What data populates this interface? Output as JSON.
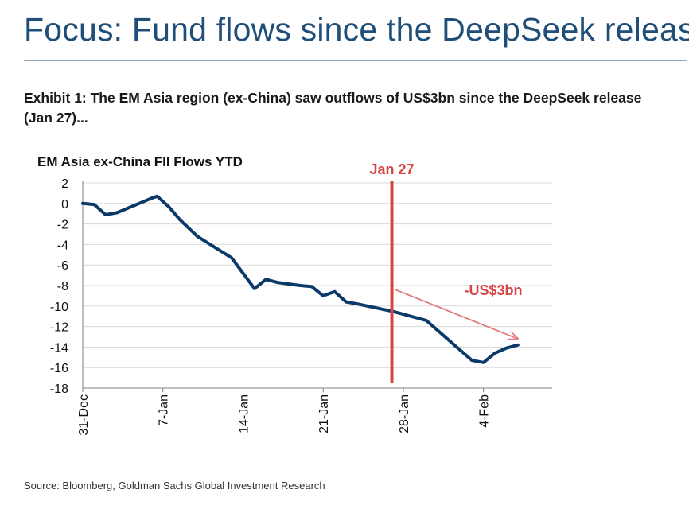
{
  "page": {
    "title": "Focus: Fund flows since the DeepSeek release",
    "exhibit": "Exhibit 1: The EM Asia region (ex-China) saw outflows of US$3bn since the DeepSeek release (Jan 27)...",
    "source": "Source: Bloomberg, Goldman Sachs Global Investment Research"
  },
  "colors": {
    "title": "#1f4e79",
    "line": "#0b3a68",
    "marker": "#d64545",
    "arrow": "#e07c7c",
    "grid": "#d9d9d9"
  },
  "chart_data": {
    "type": "line",
    "title": "EM Asia ex-China FII Flows YTD",
    "xlabel": "",
    "ylabel": "",
    "ylim": [
      -18,
      2
    ],
    "yticks": [
      2,
      0,
      -2,
      -4,
      -6,
      -8,
      -10,
      -12,
      -14,
      -16,
      -18
    ],
    "xlim": [
      0,
      41
    ],
    "xticks": [
      {
        "x": 0,
        "label": "31-Dec"
      },
      {
        "x": 7,
        "label": "7-Jan"
      },
      {
        "x": 14,
        "label": "14-Jan"
      },
      {
        "x": 21,
        "label": "21-Jan"
      },
      {
        "x": 28,
        "label": "28-Jan"
      },
      {
        "x": 35,
        "label": "4-Feb"
      }
    ],
    "grid": "horizontal",
    "series": [
      {
        "name": "EM Asia ex-China FII Flows YTD",
        "x": [
          0,
          1,
          2,
          3,
          6,
          6.5,
          7.5,
          8.5,
          10,
          13,
          15,
          16,
          17,
          19,
          20,
          21,
          22,
          23,
          24,
          27,
          28,
          29,
          30,
          34,
          35,
          36,
          37,
          38
        ],
        "y": [
          0,
          -0.1,
          -1.1,
          -0.9,
          0.5,
          0.7,
          -0.3,
          -1.6,
          -3.2,
          -5.3,
          -8.3,
          -7.4,
          -7.7,
          -8.0,
          -8.1,
          -9.0,
          -8.6,
          -9.6,
          -9.8,
          -10.5,
          -10.8,
          -11.1,
          -11.4,
          -15.3,
          -15.5,
          -14.6,
          -14.1,
          -13.8
        ]
      }
    ],
    "annotations": [
      {
        "type": "vline",
        "x": 27,
        "label": "Jan 27"
      },
      {
        "type": "arrow",
        "from": [
          27.3,
          -8.4
        ],
        "to": [
          38,
          -13.2
        ],
        "label": "-US$3bn"
      }
    ]
  }
}
